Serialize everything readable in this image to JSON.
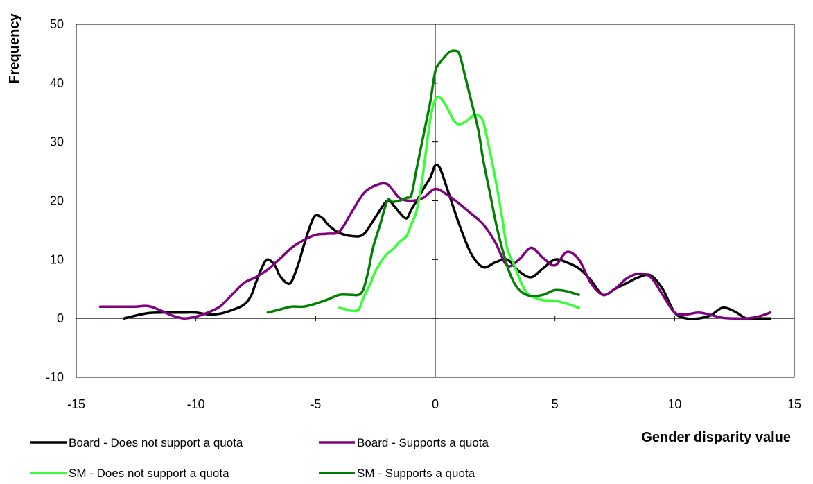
{
  "chart_data": {
    "type": "line",
    "title": "",
    "xlabel": "Gender disparity value",
    "ylabel": "Frequency",
    "xlim": [
      -15,
      15
    ],
    "ylim": [
      -10,
      50
    ],
    "x_ticks": [
      "-15",
      "-10",
      "-5",
      "0",
      "5",
      "10",
      "15"
    ],
    "y_ticks": [
      "-10",
      "0",
      "10",
      "20",
      "30",
      "40",
      "50"
    ],
    "grid": false,
    "legend_position": "bottom",
    "series": [
      {
        "name": "Board - Does not support a quota",
        "color": "#000000",
        "x": [
          -13,
          -12.5,
          -12,
          -11.5,
          -11,
          -10.5,
          -10,
          -9.5,
          -9,
          -8.5,
          -8,
          -7.7,
          -7.5,
          -7.2,
          -7,
          -6.7,
          -6.5,
          -6.2,
          -6,
          -5.7,
          -5.5,
          -5.2,
          -5,
          -4.7,
          -4.5,
          -4.2,
          -4,
          -3.5,
          -3,
          -2.5,
          -2,
          -1.7,
          -1.5,
          -1.2,
          -1,
          -0.7,
          -0.5,
          -0.2,
          0,
          0.2,
          0.5,
          1,
          1.5,
          2,
          2.5,
          3,
          3.5,
          4,
          4.5,
          5,
          5.5,
          6,
          6.5,
          7,
          7.5,
          8,
          8.5,
          9,
          9.5,
          10,
          10.5,
          11,
          11.5,
          12,
          12.5,
          13,
          13.5,
          14
        ],
        "y": [
          0,
          0.5,
          0.9,
          1,
          1,
          1,
          1,
          0.7,
          0.8,
          1.4,
          2.3,
          3.8,
          6,
          9,
          10,
          9,
          7.3,
          6,
          6.3,
          9.5,
          12.3,
          16,
          17.5,
          17,
          16,
          15,
          14.5,
          14,
          14.3,
          17.2,
          20,
          19,
          18,
          17,
          18.5,
          20.5,
          22,
          24,
          26,
          25.5,
          22,
          16,
          11,
          8.7,
          9.5,
          10,
          8,
          7,
          8.5,
          10,
          9.5,
          8.5,
          6.5,
          4,
          5,
          6,
          7,
          7.3,
          5,
          1,
          0,
          0,
          0.5,
          1.8,
          1.2,
          0,
          0,
          0
        ]
      },
      {
        "name": "Board - Supports a quota",
        "color": "#800080",
        "x": [
          -14,
          -13.5,
          -13,
          -12.5,
          -12,
          -11.5,
          -11,
          -10.5,
          -10,
          -9.5,
          -9,
          -8.5,
          -8,
          -7.5,
          -7,
          -6.5,
          -6,
          -5.5,
          -5,
          -4.5,
          -4,
          -3.5,
          -3,
          -2.5,
          -2,
          -1.5,
          -1,
          -0.5,
          0,
          0.5,
          1,
          1.5,
          2,
          2.5,
          3,
          3.5,
          4,
          4.5,
          5,
          5.5,
          6,
          6.5,
          7,
          7.5,
          8,
          8.5,
          9,
          9.5,
          10,
          10.5,
          11,
          11.5,
          12,
          12.5,
          13,
          13.5,
          14
        ],
        "y": [
          2,
          2,
          2,
          2,
          2.1,
          1.4,
          0.5,
          0,
          0.3,
          1,
          2,
          4,
          6,
          7,
          8.3,
          10.1,
          12,
          13.3,
          14.2,
          14.4,
          14.8,
          18,
          21.2,
          22.6,
          22.8,
          20.5,
          20,
          20.5,
          22,
          21,
          19.5,
          17.8,
          16,
          13,
          9,
          10,
          12,
          10.3,
          9,
          11.3,
          10,
          6,
          4,
          5,
          6.8,
          7.6,
          7,
          4,
          1,
          0.7,
          1,
          0.6,
          0.1,
          0,
          0,
          0.3,
          1
        ]
      },
      {
        "name": "SM - Does not support a quota",
        "color": "#33ff33",
        "x": [
          -4,
          -3.7,
          -3.5,
          -3.2,
          -3,
          -2.7,
          -2.5,
          -2.2,
          -2,
          -1.7,
          -1.5,
          -1.2,
          -1,
          -0.8,
          -0.6,
          -0.4,
          -0.2,
          0,
          0.2,
          0.4,
          0.6,
          0.8,
          1,
          1.3,
          1.6,
          1.8,
          2,
          2.2,
          2.5,
          2.8,
          3,
          3.3,
          3.6,
          3.8,
          4,
          4.5,
          5,
          5.5,
          6
        ],
        "y": [
          1.8,
          1.5,
          1.3,
          1.5,
          3.5,
          6,
          8,
          10,
          11,
          12,
          13,
          14,
          16,
          18,
          22,
          28,
          34,
          37.2,
          37.5,
          36.5,
          35,
          33.5,
          33,
          33.5,
          34.5,
          34.5,
          33.5,
          30,
          24,
          17,
          12,
          9,
          6,
          4.5,
          3.8,
          3.1,
          3,
          2.5,
          1.8
        ]
      },
      {
        "name": "SM - Supports a quota",
        "color": "#008000",
        "x": [
          -7,
          -6.5,
          -6,
          -5.5,
          -5,
          -4.5,
          -4,
          -3.5,
          -3.2,
          -3,
          -2.8,
          -2.6,
          -2.3,
          -2,
          -1.8,
          -1.5,
          -1.2,
          -1,
          -0.8,
          -0.6,
          -0.4,
          -0.2,
          0,
          0.2,
          0.4,
          0.6,
          0.8,
          1,
          1.2,
          1.5,
          1.8,
          2,
          2.3,
          2.6,
          3,
          3.3,
          3.6,
          4,
          4.5,
          5,
          5.5,
          6
        ],
        "y": [
          1,
          1.5,
          2,
          2,
          2.5,
          3.2,
          4,
          4,
          4,
          5,
          8,
          12,
          16,
          20,
          19.8,
          20,
          20.5,
          21,
          25,
          29,
          33,
          37,
          42,
          43.5,
          44.5,
          45.3,
          45.5,
          45,
          42,
          37,
          32,
          27,
          21,
          15,
          9,
          6,
          4.5,
          3.8,
          4,
          4.8,
          4.6,
          4
        ]
      }
    ]
  }
}
